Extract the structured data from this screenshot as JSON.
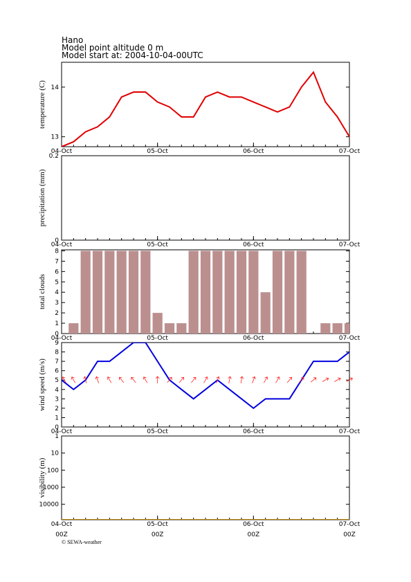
{
  "header": {
    "location": "Hano",
    "altitude": "Model point altitude  0 m",
    "start": "Model start at: 2004-10-04-00UTC"
  },
  "chart_data": [
    {
      "type": "line",
      "ylabel": "temperature (C)",
      "x": [
        0,
        3,
        6,
        9,
        12,
        15,
        18,
        21,
        24,
        27,
        30,
        33,
        36,
        39,
        42,
        45,
        48,
        51,
        54,
        57,
        60,
        63,
        66,
        69,
        72
      ],
      "values": [
        12.8,
        12.9,
        13.1,
        13.2,
        13.4,
        13.8,
        13.9,
        13.9,
        13.7,
        13.6,
        13.4,
        13.4,
        13.8,
        13.9,
        13.8,
        13.8,
        13.7,
        13.6,
        13.5,
        13.6,
        14.0,
        14.3,
        13.7,
        13.4,
        13.0
      ],
      "color": "#e00000",
      "xlim": [
        0,
        72
      ],
      "ylim": [
        12.8,
        14.5
      ],
      "yticks": [
        13,
        14
      ],
      "xticks": [
        {
          "value": 0,
          "label": "04-Oct"
        },
        {
          "value": 24,
          "label": "05-Oct"
        },
        {
          "value": 48,
          "label": "06-Oct"
        },
        {
          "value": 72,
          "label": "07-Oct"
        }
      ]
    },
    {
      "type": "bar",
      "ylabel": "precipitation (mm)",
      "x": [
        3,
        6,
        9,
        12,
        15,
        18,
        21,
        24,
        27,
        30,
        33,
        36,
        39,
        42,
        45,
        48,
        51,
        54,
        57,
        60,
        63,
        66,
        69,
        72
      ],
      "values": [
        0,
        0,
        0,
        0,
        0,
        0,
        0,
        0,
        0,
        0,
        0,
        0,
        0,
        0,
        0,
        0,
        0,
        0,
        0,
        0,
        0,
        0,
        0,
        0
      ],
      "color": "#3060c0",
      "xlim": [
        0,
        72
      ],
      "ylim": [
        0,
        0.2
      ],
      "yticks": [
        0,
        0.2
      ],
      "xticks": [
        {
          "value": 0,
          "label": "04-Oct"
        },
        {
          "value": 24,
          "label": "05-Oct"
        },
        {
          "value": 48,
          "label": "06-Oct"
        },
        {
          "value": 72,
          "label": "07-Oct"
        }
      ]
    },
    {
      "type": "bar",
      "ylabel": "total clouds",
      "x": [
        3,
        6,
        9,
        12,
        15,
        18,
        21,
        24,
        27,
        30,
        33,
        36,
        39,
        42,
        45,
        48,
        51,
        54,
        57,
        60,
        63,
        66,
        69,
        72
      ],
      "values": [
        1,
        8,
        8,
        8,
        8,
        8,
        8,
        2,
        1,
        1,
        8,
        8,
        8,
        8,
        8,
        8,
        4,
        8,
        8,
        8,
        0,
        1,
        1,
        1
      ],
      "color": "#bc8f8f",
      "xlim": [
        0,
        72
      ],
      "ylim": [
        0,
        8.1
      ],
      "yticks": [
        0,
        1,
        2,
        3,
        4,
        5,
        6,
        7,
        8
      ],
      "xticks": [
        {
          "value": 0,
          "label": "04-Oct"
        },
        {
          "value": 24,
          "label": "05-Oct"
        },
        {
          "value": 48,
          "label": "06-Oct"
        },
        {
          "value": 72,
          "label": "07-Oct"
        }
      ]
    },
    {
      "type": "line",
      "ylabel": "wind speed (m/s)",
      "x": [
        0,
        3,
        6,
        9,
        12,
        15,
        18,
        21,
        24,
        27,
        30,
        33,
        36,
        39,
        42,
        45,
        48,
        51,
        54,
        57,
        60,
        63,
        66,
        69,
        72
      ],
      "values": [
        5,
        4,
        5,
        7,
        7,
        8,
        9,
        9,
        7,
        5,
        4,
        3,
        4,
        5,
        4,
        3,
        2,
        3,
        3,
        3,
        5,
        7,
        7,
        7,
        8
      ],
      "color": "#0000e0",
      "directions": [
        330,
        330,
        345,
        340,
        330,
        320,
        320,
        330,
        0,
        40,
        40,
        40,
        30,
        20,
        10,
        10,
        20,
        30,
        30,
        40,
        40,
        50,
        60,
        60,
        60
      ],
      "direction_color": "#ff2020",
      "xlim": [
        0,
        72
      ],
      "ylim": [
        0,
        9
      ],
      "yticks": [
        0,
        1,
        2,
        3,
        4,
        5,
        6,
        7,
        8,
        9
      ],
      "xticks": [
        {
          "value": 0,
          "label": "04-Oct"
        },
        {
          "value": 24,
          "label": "05-Oct"
        },
        {
          "value": 48,
          "label": "06-Oct"
        },
        {
          "value": 72,
          "label": "07-Oct"
        }
      ]
    },
    {
      "type": "line",
      "ylabel": "visibility (m)",
      "log": true,
      "inverted": true,
      "x": [
        0,
        3,
        6,
        9,
        12,
        15,
        18,
        21,
        24,
        27,
        30,
        33,
        36,
        39,
        42,
        45,
        48,
        51,
        54,
        57,
        60,
        63,
        66,
        69,
        72
      ],
      "values": [
        80000,
        80000,
        80000,
        80000,
        80000,
        80000,
        80000,
        80000,
        80000,
        80000,
        80000,
        80000,
        80000,
        80000,
        80000,
        80000,
        80000,
        80000,
        80000,
        80000,
        80000,
        80000,
        80000,
        80000,
        80000
      ],
      "color": "#c08a10",
      "xlim": [
        0,
        72
      ],
      "ylim": [
        1,
        80000
      ],
      "yticks": [
        1,
        10,
        100,
        1000,
        10000
      ],
      "xticks": [
        {
          "value": 0,
          "label": "04-Oct"
        },
        {
          "value": 24,
          "label": "05-Oct"
        },
        {
          "value": 48,
          "label": "06-Oct"
        },
        {
          "value": 72,
          "label": "07-Oct"
        }
      ],
      "xtick_sublabels": [
        "00Z",
        "00Z",
        "00Z",
        "00Z"
      ]
    }
  ],
  "footer": {
    "credit": "© SEWA-weather"
  }
}
